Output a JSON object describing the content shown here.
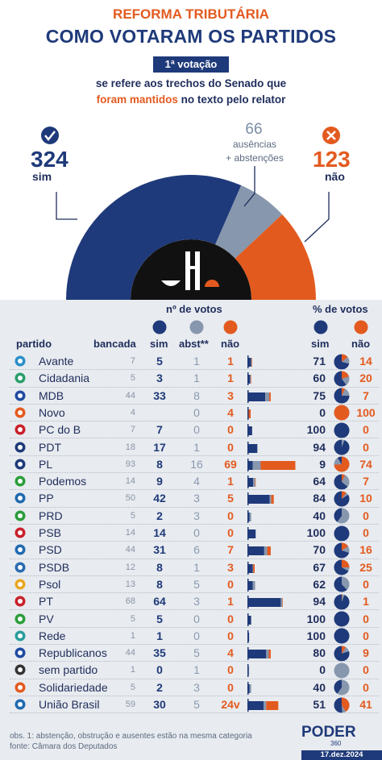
{
  "header": {
    "kicker": "REFORMA TRIBUTÁRIA",
    "title": "COMO VOTARAM OS PARTIDOS",
    "badge": "1ª votação",
    "desc_line1": "se refere aos trechos do Senado que",
    "desc_hl": "foram mantidos",
    "desc_rest": " no texto pelo relator"
  },
  "totals": {
    "sim": "324",
    "sim_label": "sim",
    "nao": "123",
    "nao_label": "não",
    "abs": "66",
    "abs_label1": "ausências",
    "abs_label2": "+ abstenções"
  },
  "table": {
    "hdr_nvotos": "nº de votos",
    "hdr_pct": "% de votos",
    "col_partido": "partido",
    "col_bancada": "bancada",
    "col_sim": "sim",
    "col_abst": "abst**",
    "col_nao": "não",
    "col_psim": "sim",
    "col_pnao": "não"
  },
  "colors": {
    "sim": "#1f3a7a",
    "abst": "#8797ad",
    "nao": "#e35a1f",
    "bg": "#e8ebef"
  },
  "chart_data": {
    "type": "table",
    "hemicycle": {
      "sim": 324,
      "abst": 66,
      "nao": 123
    },
    "rows": [
      {
        "partido": "Avante",
        "bancada": "7",
        "sim": "5",
        "abst": "1",
        "nao": "1",
        "psim": "71",
        "pnao": "14",
        "logo": "avante-logo"
      },
      {
        "partido": "Cidadania",
        "bancada": "5",
        "sim": "3",
        "abst": "1",
        "nao": "1",
        "psim": "60",
        "pnao": "20",
        "logo": "cidadania-logo"
      },
      {
        "partido": "MDB",
        "bancada": "44",
        "sim": "33",
        "abst": "8",
        "nao": "3",
        "psim": "75",
        "pnao": "7",
        "logo": "mdb-logo"
      },
      {
        "partido": "Novo",
        "bancada": "4",
        "sim": "",
        "abst": "0",
        "nao": "4",
        "psim": "0",
        "pnao": "100",
        "logo": "novo-logo"
      },
      {
        "partido": "PC do B",
        "bancada": "7",
        "sim": "7",
        "abst": "0",
        "nao": "0",
        "psim": "100",
        "pnao": "0",
        "logo": "pcdob-logo"
      },
      {
        "partido": "PDT",
        "bancada": "18",
        "sim": "17",
        "abst": "1",
        "nao": "0",
        "psim": "94",
        "pnao": "0",
        "logo": "pdt-logo"
      },
      {
        "partido": "PL",
        "bancada": "93",
        "sim": "8",
        "abst": "16",
        "nao": "69",
        "psim": "9",
        "pnao": "74",
        "logo": "pl-logo"
      },
      {
        "partido": "Podemos",
        "bancada": "14",
        "sim": "9",
        "abst": "4",
        "nao": "1",
        "psim": "64",
        "pnao": "7",
        "logo": "podemos-logo"
      },
      {
        "partido": "PP",
        "bancada": "50",
        "sim": "42",
        "abst": "3",
        "nao": "5",
        "psim": "84",
        "pnao": "10",
        "logo": "pp-logo"
      },
      {
        "partido": "PRD",
        "bancada": "5",
        "sim": "2",
        "abst": "3",
        "nao": "0",
        "psim": "40",
        "pnao": "0",
        "logo": "prd-logo"
      },
      {
        "partido": "PSB",
        "bancada": "14",
        "sim": "14",
        "abst": "0",
        "nao": "0",
        "psim": "100",
        "pnao": "0",
        "logo": "psb-logo"
      },
      {
        "partido": "PSD",
        "bancada": "44",
        "sim": "31",
        "abst": "6",
        "nao": "7",
        "psim": "70",
        "pnao": "16",
        "logo": "psd-logo"
      },
      {
        "partido": "PSDB",
        "bancada": "12",
        "sim": "8",
        "abst": "1",
        "nao": "3",
        "psim": "67",
        "pnao": "25",
        "logo": "psdb-logo"
      },
      {
        "partido": "Psol",
        "bancada": "13",
        "sim": "8",
        "abst": "5",
        "nao": "0",
        "psim": "62",
        "pnao": "0",
        "logo": "psol-logo"
      },
      {
        "partido": "PT",
        "bancada": "68",
        "sim": "64",
        "abst": "3",
        "nao": "1",
        "psim": "94",
        "pnao": "1",
        "logo": "pt-logo"
      },
      {
        "partido": "PV",
        "bancada": "5",
        "sim": "5",
        "abst": "0",
        "nao": "0",
        "psim": "100",
        "pnao": "0",
        "logo": "pv-logo"
      },
      {
        "partido": "Rede",
        "bancada": "1",
        "sim": "1",
        "abst": "0",
        "nao": "0",
        "psim": "100",
        "pnao": "0",
        "logo": "rede-logo"
      },
      {
        "partido": "Republicanos",
        "bancada": "44",
        "sim": "35",
        "abst": "5",
        "nao": "4",
        "psim": "80",
        "pnao": "9",
        "logo": "republicanos-logo"
      },
      {
        "partido": "sem partido",
        "bancada": "1",
        "sim": "0",
        "abst": "1",
        "nao": "0",
        "psim": "0",
        "pnao": "0",
        "logo": "sem-partido-logo"
      },
      {
        "partido": "Solidariedade",
        "bancada": "5",
        "sim": "2",
        "abst": "3",
        "nao": "0",
        "psim": "40",
        "pnao": "0",
        "logo": "solidariedade-logo"
      },
      {
        "partido": "União Brasil",
        "bancada": "59",
        "sim": "30",
        "abst": "5",
        "nao": "24v",
        "psim": "51",
        "pnao": "41",
        "logo": "uniao-logo"
      }
    ]
  },
  "footer": {
    "note": "obs. 1: abstenção, obstrução e ausentes estão na mesma categoria",
    "source": "fonte: Câmara dos Deputados",
    "brand": "PODER",
    "brand_sub": "360",
    "date": "17.dez.2024"
  }
}
